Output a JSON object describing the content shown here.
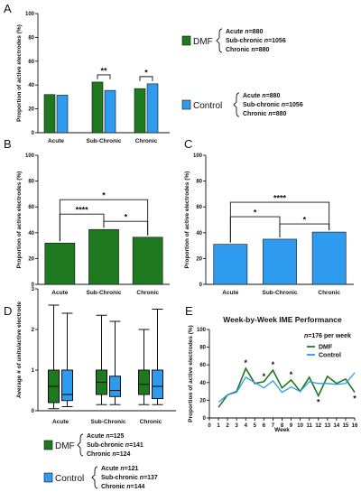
{
  "colors": {
    "dmf": "#1f7a1f",
    "control": "#2e9bef",
    "axis": "#111111"
  },
  "legend_top": {
    "dmf_label": "DMF",
    "control_label": "Control",
    "dmf_counts": [
      "Acute n=880",
      "Sub-chronic n=1056",
      "Chronic n=880"
    ],
    "control_counts": [
      "Acute n=880",
      "Sub-chronic n=1056",
      "Chronic n=880"
    ]
  },
  "legend_bottom": {
    "dmf_label": "DMF",
    "control_label": "Control",
    "dmf_counts": [
      "Acute n=125",
      "Sub-chronic n=141",
      "Chronic n=124"
    ],
    "control_counts": [
      "Acute n=121",
      "Sub-chronic n=137",
      "Chronic n=144"
    ]
  },
  "panels": {
    "a": "A",
    "b": "B",
    "c": "C",
    "d": "D",
    "e": "E"
  },
  "chart_data": [
    {
      "panel": "A",
      "type": "bar",
      "categories": [
        "Acute",
        "Sub-Chronic",
        "Chronic"
      ],
      "series": [
        {
          "name": "DMF",
          "values": [
            32,
            42.5,
            37
          ]
        },
        {
          "name": "Control",
          "values": [
            31.5,
            35.5,
            41
          ]
        }
      ],
      "ylabel": "Proportion of active electrodes (%)",
      "ylim": [
        0,
        100
      ],
      "yticks": [
        0,
        20,
        40,
        60,
        80,
        100
      ],
      "annotations": [
        {
          "category": "Sub-Chronic",
          "text": "**"
        },
        {
          "category": "Chronic",
          "text": "*"
        }
      ]
    },
    {
      "panel": "B",
      "type": "bar",
      "categories": [
        "Acute",
        "Sub-Chronic",
        "Chronic"
      ],
      "values": [
        32,
        42.5,
        36.5
      ],
      "ylabel": "Proportion of active electrodes (%)",
      "ylim": [
        0,
        100
      ],
      "yticks": [
        0,
        20,
        40,
        60,
        80,
        100
      ],
      "annotations": [
        {
          "from": "Acute",
          "to": "Sub-Chronic",
          "text": "****"
        },
        {
          "from": "Sub-Chronic",
          "to": "Chronic",
          "text": "*"
        },
        {
          "from": "Acute",
          "to": "Chronic",
          "text": "*"
        }
      ]
    },
    {
      "panel": "C",
      "type": "bar",
      "categories": [
        "Acute",
        "Sub-Chronic",
        "Chronic"
      ],
      "values": [
        31,
        35,
        40.5
      ],
      "ylabel": "Proportion of active electrodes (%)",
      "ylim": [
        0,
        100
      ],
      "yticks": [
        0,
        20,
        40,
        60,
        80,
        100
      ],
      "annotations": [
        {
          "from": "Acute",
          "to": "Sub-Chronic",
          "text": "*"
        },
        {
          "from": "Sub-Chronic",
          "to": "Chronic",
          "text": "*"
        },
        {
          "from": "Acute",
          "to": "Chronic",
          "text": "****"
        }
      ]
    },
    {
      "panel": "D",
      "type": "box",
      "categories": [
        "Acute",
        "Sub-Chronic",
        "Chronic"
      ],
      "series": [
        {
          "name": "DMF",
          "boxes": [
            {
              "min": 0.05,
              "q1": 0.2,
              "median": 0.6,
              "q3": 1.0,
              "max": 2.6
            },
            {
              "min": 0.15,
              "q1": 0.4,
              "median": 0.7,
              "q3": 1.0,
              "max": 2.35
            },
            {
              "min": 0.15,
              "q1": 0.4,
              "median": 0.65,
              "q3": 1.0,
              "max": 2.0
            }
          ]
        },
        {
          "name": "Control",
          "boxes": [
            {
              "min": 0.1,
              "q1": 0.25,
              "median": 0.4,
              "q3": 1.0,
              "max": 2.4
            },
            {
              "min": 0.15,
              "q1": 0.35,
              "median": 0.5,
              "q3": 0.85,
              "max": 2.2
            },
            {
              "min": 0.15,
              "q1": 0.3,
              "median": 0.6,
              "q3": 1.0,
              "max": 2.5
            }
          ]
        }
      ],
      "ylabel": "Average # of units/active electrode",
      "ylim": [
        0,
        3
      ],
      "yticks": [
        0,
        1,
        2,
        3
      ]
    },
    {
      "panel": "E",
      "type": "line",
      "title": "Week-by-Week IME Performance",
      "note": "n=176 per week",
      "x": [
        1,
        2,
        3,
        4,
        5,
        6,
        7,
        8,
        9,
        10,
        11,
        12,
        13,
        14,
        15,
        16
      ],
      "series": [
        {
          "name": "DMF",
          "values": [
            12,
            26,
            30,
            56,
            39,
            41,
            54,
            34,
            43,
            30,
            46,
            25,
            47,
            39,
            44,
            29
          ]
        },
        {
          "name": "Control",
          "values": [
            18,
            26,
            29,
            46,
            40,
            34,
            42,
            29,
            35,
            30,
            41,
            39,
            39,
            38,
            39,
            51
          ]
        }
      ],
      "xlabel": "Week",
      "ylabel": "Proportion of active electrodes (%)",
      "ylim": [
        0,
        100
      ],
      "yticks": [
        0,
        20,
        40,
        60,
        80,
        100
      ],
      "xticks": [
        0,
        1,
        2,
        3,
        4,
        5,
        6,
        7,
        8,
        9,
        10,
        11,
        12,
        13,
        14,
        15,
        16
      ],
      "annotations": [
        {
          "x": 4,
          "text": "*"
        },
        {
          "x": 6,
          "text": "*"
        },
        {
          "x": 7,
          "text": "*"
        },
        {
          "x": 9,
          "text": "*"
        },
        {
          "x": 12,
          "text": "*"
        },
        {
          "x": 16,
          "text": "*"
        }
      ]
    }
  ]
}
